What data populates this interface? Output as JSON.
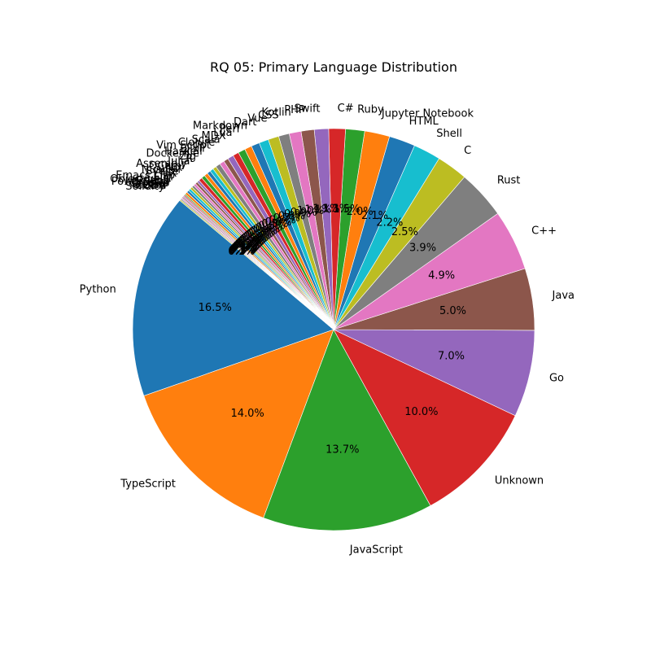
{
  "chart_data": {
    "type": "pie",
    "title": "RQ 05: Primary Language Distribution",
    "start_angle_deg": 140,
    "direction": "counterclockwise",
    "pct_format": "%1.1f%%",
    "slices": [
      {
        "label": "Python",
        "value": 17.2,
        "color": "#1f77b4"
      },
      {
        "label": "TypeScript",
        "value": 14.6,
        "color": "#ff7f0e"
      },
      {
        "label": "JavaScript",
        "value": 14.3,
        "color": "#2ca02c"
      },
      {
        "label": "Unknown",
        "value": 10.4,
        "color": "#d62728"
      },
      {
        "label": "Go",
        "value": 7.3,
        "color": "#9467bd"
      },
      {
        "label": "Java",
        "value": 5.2,
        "color": "#8c564b"
      },
      {
        "label": "C++",
        "value": 5.1,
        "color": "#e377c2"
      },
      {
        "label": "Rust",
        "value": 4.1,
        "color": "#7f7f7f"
      },
      {
        "label": "C",
        "value": 2.6,
        "color": "#bcbd22"
      },
      {
        "label": "Shell",
        "value": 2.3,
        "color": "#17becf"
      },
      {
        "label": "HTML",
        "value": 2.2,
        "color": "#1f77b4"
      },
      {
        "label": "Jupyter Notebook",
        "value": 2.1,
        "color": "#ff7f0e"
      },
      {
        "label": "Ruby",
        "value": 1.6,
        "color": "#2ca02c"
      },
      {
        "label": "C#",
        "value": 1.4,
        "color": "#d62728"
      },
      {
        "label": "Swift",
        "value": 1.2,
        "color": "#9467bd"
      },
      {
        "label": "PHP",
        "value": 1.1,
        "color": "#8c564b"
      },
      {
        "label": "Kotlin",
        "value": 1.0,
        "color": "#e377c2"
      },
      {
        "label": "CSS",
        "value": 0.9,
        "color": "#7f7f7f"
      },
      {
        "label": "Vue",
        "value": 0.9,
        "color": "#bcbd22"
      },
      {
        "label": "Dart",
        "value": 0.8,
        "color": "#17becf"
      },
      {
        "label": "Markdown",
        "value": 0.7,
        "color": "#1f77b4"
      },
      {
        "label": "Perl",
        "value": 0.6,
        "color": "#ff7f0e"
      },
      {
        "label": "Lua",
        "value": 0.6,
        "color": "#2ca02c"
      },
      {
        "label": "MDX",
        "value": 0.5,
        "color": "#d62728"
      },
      {
        "label": "Scala",
        "value": 0.5,
        "color": "#9467bd"
      },
      {
        "label": "Clojure",
        "value": 0.4,
        "color": "#8c564b"
      },
      {
        "label": "Vim Script",
        "value": 0.4,
        "color": "#e377c2"
      },
      {
        "label": "Elixir",
        "value": 0.4,
        "color": "#7f7f7f"
      },
      {
        "label": "Haskell",
        "value": 0.3,
        "color": "#bcbd22"
      },
      {
        "label": "Dockerfile",
        "value": 0.3,
        "color": "#17becf"
      },
      {
        "label": "Zig",
        "value": 0.3,
        "color": "#1f77b4"
      },
      {
        "label": "R",
        "value": 0.3,
        "color": "#ff7f0e"
      },
      {
        "label": "Julia",
        "value": 0.3,
        "color": "#2ca02c"
      },
      {
        "label": "Assembly",
        "value": 0.3,
        "color": "#d62728"
      },
      {
        "label": "OCaml",
        "value": 0.2,
        "color": "#9467bd"
      },
      {
        "label": "Nix",
        "value": 0.2,
        "color": "#8c564b"
      },
      {
        "label": "Nushell",
        "value": 0.2,
        "color": "#e377c2"
      },
      {
        "label": "Svelte",
        "value": 0.2,
        "color": "#7f7f7f"
      },
      {
        "label": "TeX",
        "value": 0.2,
        "color": "#bcbd22"
      },
      {
        "label": "Emacs Lisp",
        "value": 0.2,
        "color": "#17becf"
      },
      {
        "label": "Elm",
        "value": 0.2,
        "color": "#1f77b4"
      },
      {
        "label": "Objective-C",
        "value": 0.2,
        "color": "#ff7f0e"
      },
      {
        "label": "Erlang",
        "value": 0.1,
        "color": "#2ca02c"
      },
      {
        "label": "PowerShell",
        "value": 0.1,
        "color": "#d62728"
      },
      {
        "label": "Crystal",
        "value": 0.1,
        "color": "#9467bd"
      },
      {
        "label": "Groovy",
        "value": 0.1,
        "color": "#8c564b"
      },
      {
        "label": "Gleam",
        "value": 0.1,
        "color": "#e377c2"
      },
      {
        "label": "CUDA",
        "value": 0.1,
        "color": "#7f7f7f"
      },
      {
        "label": "Solidity",
        "value": 0.1,
        "color": "#bcbd22"
      }
    ]
  }
}
